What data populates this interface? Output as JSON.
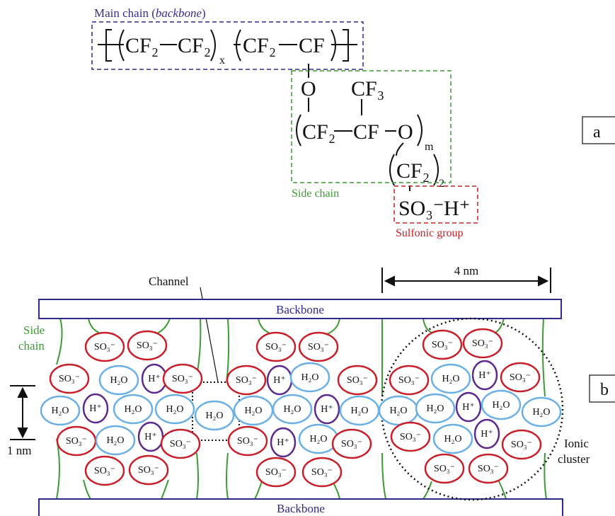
{
  "panel_a": {
    "label": "a",
    "main_chain_label": "Main chain (",
    "main_chain_label_italic": "backbone",
    "main_chain_label_end": ")",
    "formula": [
      "CF₂",
      "CF₂",
      "x",
      "CF₂",
      "CF",
      "O",
      "CF₃",
      "CF₂",
      "CF",
      "O",
      "m",
      "CF₂",
      "2",
      "SO₃⁻",
      "H⁺"
    ],
    "side_chain_label": "Side chain",
    "sulfonic_label": "Sulfonic group"
  },
  "panel_b": {
    "label": "b",
    "backbone_top": "Backbone",
    "backbone_bottom": "Backbone",
    "side_chain_label": [
      "Side",
      "chain"
    ],
    "channel_label": "Channel",
    "scale_4nm": "4 nm",
    "scale_1nm": "1 nm",
    "ionic_cluster_label": [
      "Ionic",
      "cluster"
    ],
    "ions": [
      "SO₃⁻",
      "SO₃⁻",
      "SO₃⁻",
      "SO₃⁻",
      "SO₃⁻",
      "SO₃⁻",
      "SO₃⁻",
      "H₂O",
      "H⁺",
      "SO₃⁻",
      "SO₃⁻",
      "H⁺",
      "H₂O",
      "SO₃⁻",
      "SO₃⁻",
      "H₂O",
      "H⁺",
      "SO₃⁻",
      "H₂O",
      "H⁺",
      "H₂O",
      "H₂O",
      "H₂O",
      "H₂O",
      "H₂O",
      "H⁺",
      "H₂O",
      "H₂O",
      "H₂O",
      "H⁺",
      "H₂O",
      "H₂O",
      "SO₃⁻",
      "H₂O",
      "H⁺",
      "SO₃⁻",
      "SO₃⁻",
      "H⁺",
      "H₂O",
      "SO₃⁻",
      "SO₃⁻",
      "H₂O",
      "H⁺",
      "SO₃⁻",
      "SO₃⁻",
      "SO₃⁻",
      "SO₃⁻",
      "SO₃⁻",
      "SO₃⁻",
      "SO₃⁻"
    ]
  }
}
